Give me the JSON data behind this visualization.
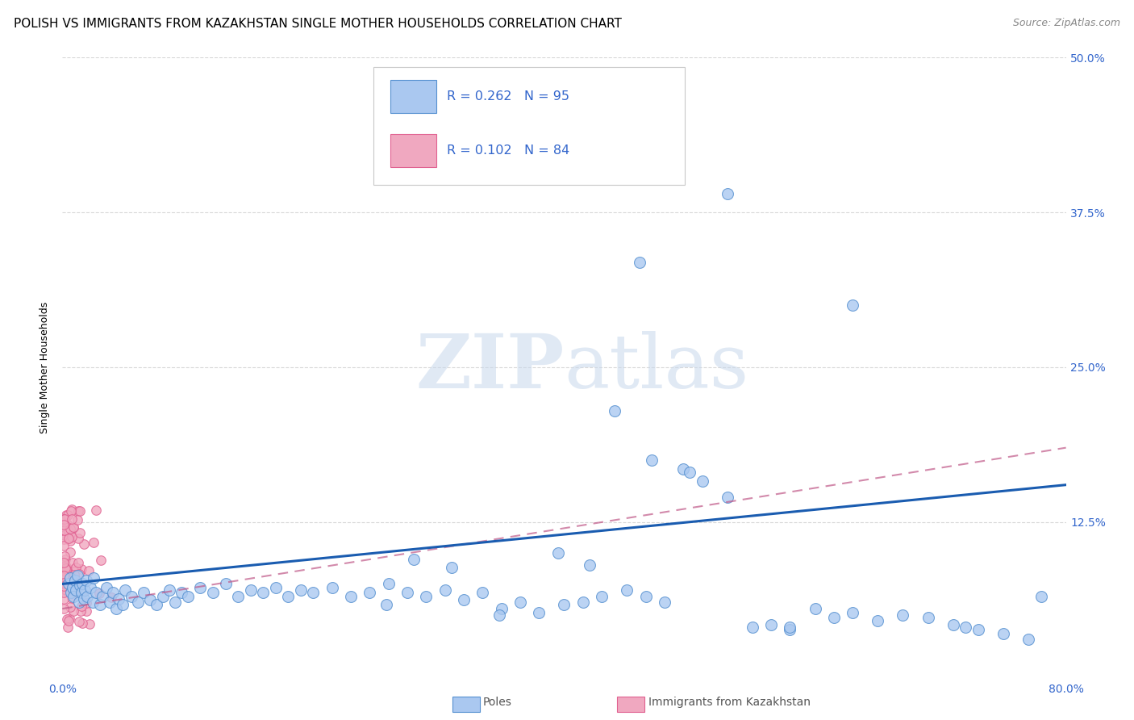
{
  "title": "POLISH VS IMMIGRANTS FROM KAZAKHSTAN SINGLE MOTHER HOUSEHOLDS CORRELATION CHART",
  "source": "Source: ZipAtlas.com",
  "ylabel": "Single Mother Households",
  "xlim": [
    0.0,
    0.8
  ],
  "ylim": [
    0.0,
    0.5
  ],
  "yticks": [
    0.0,
    0.125,
    0.25,
    0.375,
    0.5
  ],
  "yticklabels": [
    "",
    "12.5%",
    "25.0%",
    "37.5%",
    "50.0%"
  ],
  "title_fontsize": 11,
  "axis_label_fontsize": 9,
  "tick_fontsize": 10,
  "blue_color": "#aac8f0",
  "blue_edge_color": "#5590d0",
  "pink_color": "#f0a8c0",
  "pink_edge_color": "#e06090",
  "blue_line_color": "#1a5cb0",
  "pink_line_color": "#c05888",
  "grid_color": "#d8d8d8",
  "legend_R_blue": "0.262",
  "legend_N_blue": "95",
  "legend_R_pink": "0.102",
  "legend_N_pink": "84",
  "watermark_zip": "ZIP",
  "watermark_atlas": "atlas",
  "blue_line_x0": 0.0,
  "blue_line_y0": 0.075,
  "blue_line_x1": 0.8,
  "blue_line_y1": 0.155,
  "pink_line_x0": 0.0,
  "pink_line_y0": 0.055,
  "pink_line_x1": 0.8,
  "pink_line_y1": 0.185
}
